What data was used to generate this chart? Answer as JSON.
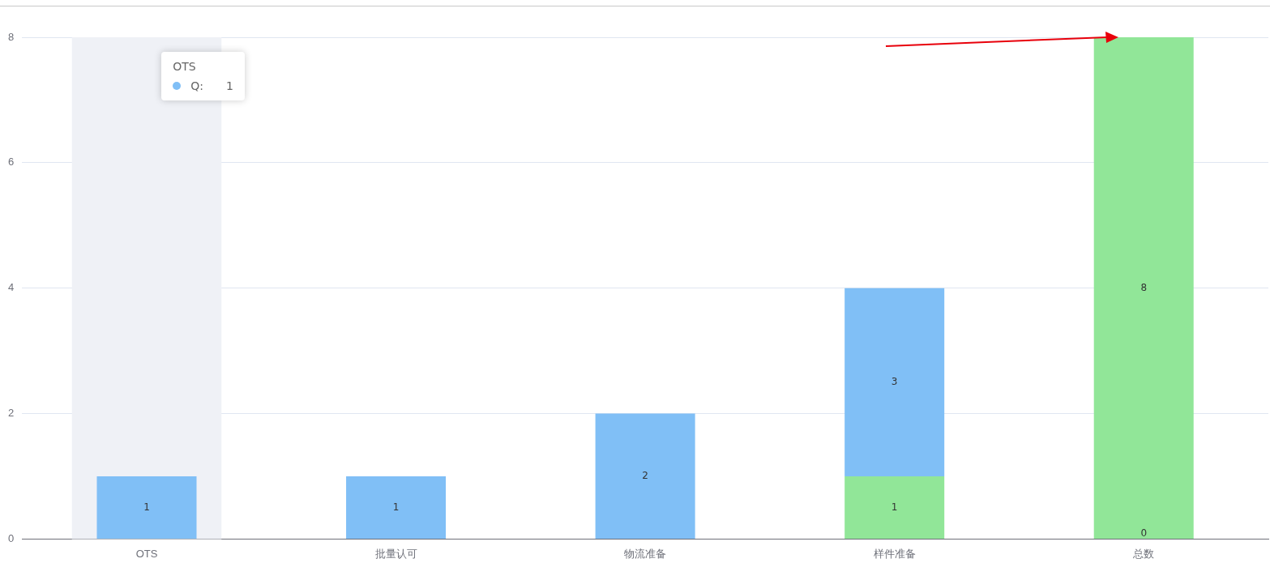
{
  "chart_data": {
    "type": "bar",
    "stacked": true,
    "categories": [
      "OTS",
      "批量认可",
      "物流准备",
      "样件准备",
      "总数"
    ],
    "series": [
      {
        "color": "#91e698",
        "values": [
          null,
          null,
          null,
          1,
          8
        ],
        "value_labels": [
          null,
          null,
          null,
          "1",
          "8"
        ]
      },
      {
        "name": "Q:",
        "color": "#80bff6",
        "values": [
          1,
          1,
          2,
          3,
          null
        ],
        "value_labels": [
          "1",
          "1",
          "2",
          "3",
          null
        ]
      }
    ],
    "ylim": [
      0,
      8
    ],
    "yticks": [
      0,
      2,
      4,
      6,
      8
    ],
    "grid": "y",
    "annotations": [
      {
        "text": "0",
        "x": "总数",
        "y": 0
      }
    ],
    "bands": [
      {
        "axis": "x",
        "from": "OTS",
        "to": "OTS",
        "color": "#eff1f6"
      }
    ]
  }
}
